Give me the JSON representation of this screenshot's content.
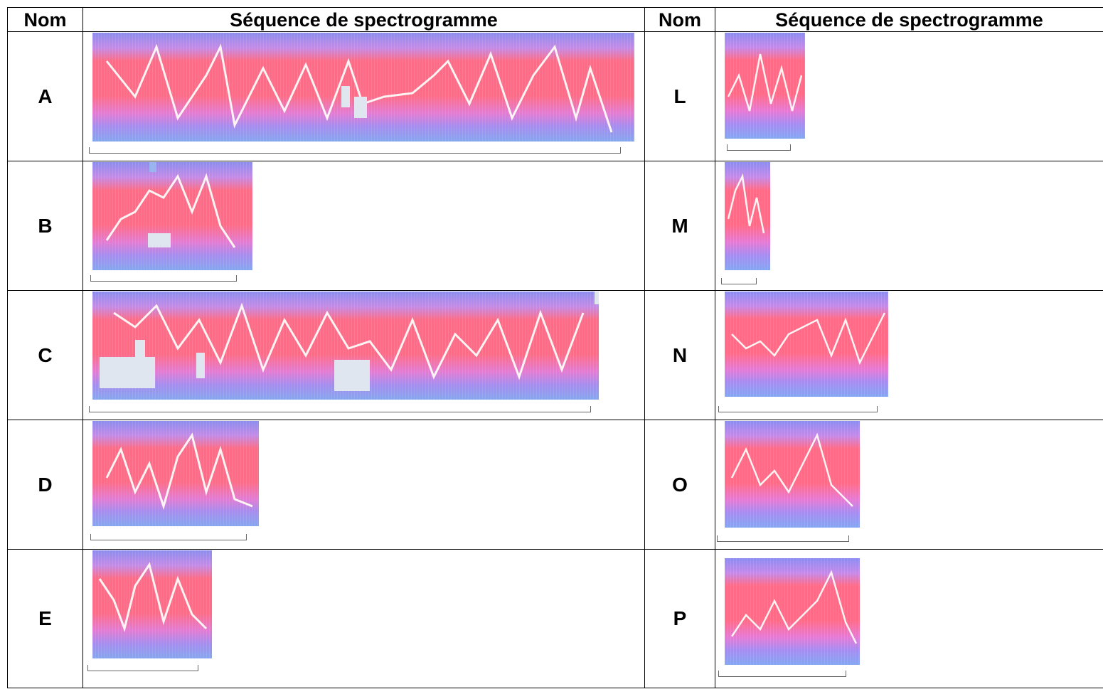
{
  "header": {
    "col_name_left": "Nom",
    "col_seq_left": "Séquence de spectrogramme",
    "col_name_right": "Nom",
    "col_seq_right": "Séquence de spectrogramme"
  },
  "left_rows": [
    {
      "name": "A"
    },
    {
      "name": "B"
    },
    {
      "name": "C"
    },
    {
      "name": "D"
    },
    {
      "name": "E"
    }
  ],
  "right_rows": [
    {
      "name": "L"
    },
    {
      "name": "M"
    },
    {
      "name": "N"
    },
    {
      "name": "O"
    },
    {
      "name": "P"
    }
  ],
  "colors": {
    "spectrogram_background": "#8c8cf0",
    "spectrogram_signal": "#ff6b86",
    "spectrogram_trace": "#ffffff",
    "bracket": "#666666"
  }
}
